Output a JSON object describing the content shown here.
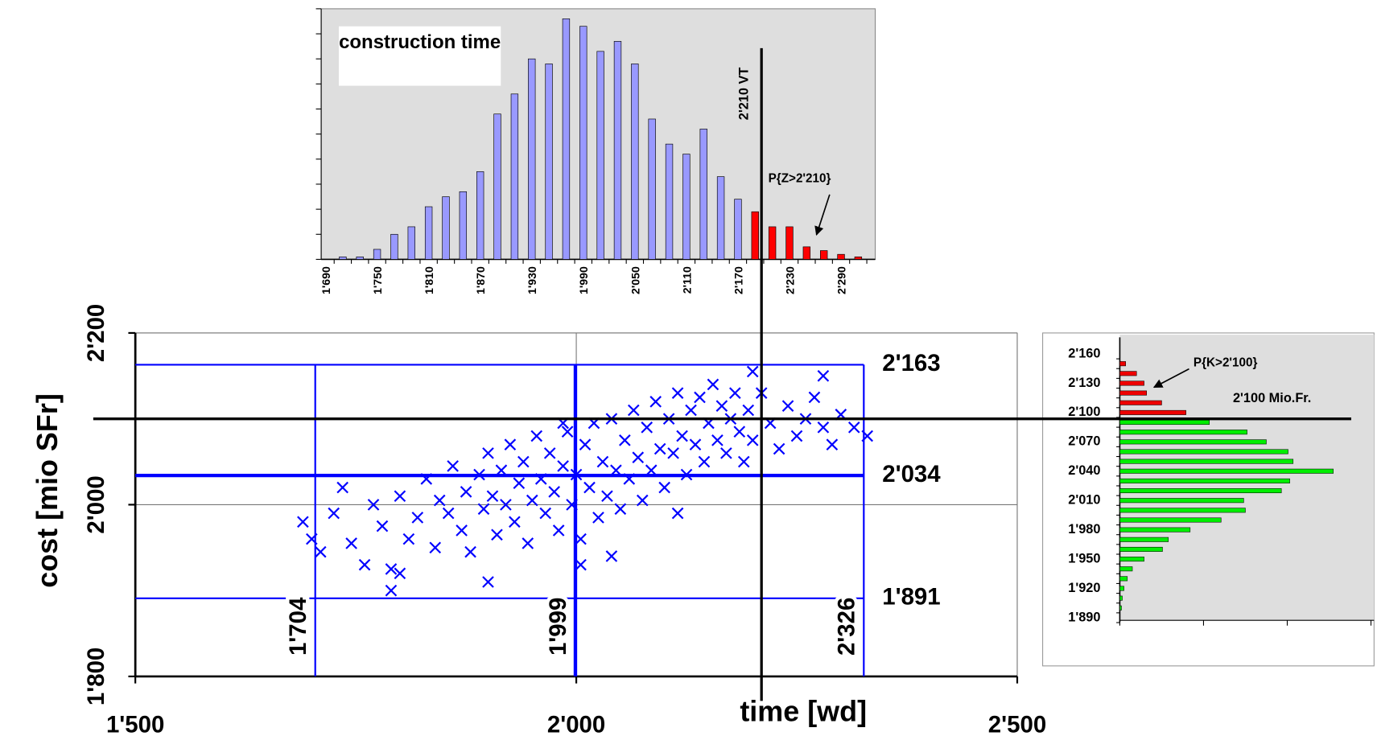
{
  "chart_data": [
    {
      "type": "bar",
      "title": "construction time",
      "categories": [
        "1'690",
        null,
        null,
        "1'750",
        null,
        null,
        "1'810",
        null,
        null,
        "1'870",
        null,
        null,
        "1'930",
        null,
        null,
        "1'990",
        null,
        null,
        "2'050",
        null,
        null,
        "2'110",
        null,
        null,
        "2'170",
        null,
        null,
        "2'230",
        null,
        null,
        "2'290",
        null
      ],
      "series": [
        {
          "color": "#9999ff",
          "values": [
            0,
            0.1,
            0.1,
            0.4,
            1.0,
            1.3,
            2.1,
            2.5,
            2.7,
            3.5,
            5.8,
            6.6,
            8.0,
            7.8,
            9.6,
            9.3,
            8.3,
            8.7,
            7.8,
            5.6,
            4.6,
            4.2,
            5.2,
            3.3,
            2.4,
            null,
            null,
            null,
            null,
            null,
            null,
            null
          ]
        },
        {
          "color": "#ff0000",
          "values": [
            null,
            null,
            null,
            null,
            null,
            null,
            null,
            null,
            null,
            null,
            null,
            null,
            null,
            null,
            null,
            null,
            null,
            null,
            null,
            null,
            null,
            null,
            null,
            null,
            null,
            1.9,
            1.3,
            1.3,
            0.5,
            0.35,
            0.2,
            0.1
          ]
        }
      ],
      "ylim": [
        0,
        10
      ],
      "yticks": [
        0,
        1,
        2,
        3,
        4,
        5,
        6,
        7,
        8,
        9,
        10
      ],
      "annotations": [
        "2'210 VT",
        "P{Z>2'210}"
      ]
    },
    {
      "type": "scatter",
      "color": "#0000ff",
      "x_label": "time [wd]",
      "y_label": "cost [mio SFr]",
      "x": [
        1690,
        1700,
        1710,
        1725,
        1735,
        1745,
        1760,
        1770,
        1780,
        1790,
        1800,
        1810,
        1820,
        1830,
        1840,
        1845,
        1855,
        1860,
        1870,
        1875,
        1880,
        1890,
        1895,
        1900,
        1905,
        1910,
        1915,
        1920,
        1925,
        1930,
        1935,
        1940,
        1945,
        1950,
        1955,
        1960,
        1965,
        1970,
        1975,
        1980,
        1985,
        1990,
        1995,
        2000,
        2005,
        2010,
        2015,
        2020,
        2025,
        2030,
        2035,
        2040,
        2045,
        2050,
        2055,
        2060,
        2065,
        2070,
        2075,
        2080,
        2085,
        2090,
        2095,
        2100,
        2105,
        2110,
        2115,
        2120,
        2125,
        2130,
        2135,
        2140,
        2145,
        2150,
        2155,
        2160,
        2165,
        2170,
        2175,
        2180,
        2185,
        2190,
        2195,
        2200,
        2210,
        2220,
        2230,
        2240,
        2250,
        2260,
        2270,
        2280,
        2290,
        2300,
        2315,
        2330,
        2005,
        2040,
        2115,
        1985,
        1900,
        1800,
        2200,
        2280,
        1790
      ],
      "y": [
        1980,
        1960,
        1945,
        1990,
        2020,
        1955,
        1930,
        2000,
        1975,
        1925,
        2010,
        1960,
        1985,
        2030,
        1950,
        2005,
        1990,
        2045,
        1970,
        2015,
        1945,
        2035,
        1995,
        2060,
        2010,
        1965,
        2040,
        2000,
        2070,
        1980,
        2025,
        2050,
        1955,
        2005,
        2080,
        2030,
        1990,
        2060,
        2015,
        1970,
        2045,
        2085,
        2000,
        2035,
        1960,
        2070,
        2020,
        2095,
        1985,
        2050,
        2010,
        2100,
        2040,
        1995,
        2075,
        2030,
        2110,
        2055,
        2005,
        2090,
        2040,
        2120,
        2065,
        2020,
        2100,
        2060,
        2130,
        2080,
        2035,
        2110,
        2070,
        2125,
        2050,
        2095,
        2140,
        2075,
        2115,
        2060,
        2100,
        2130,
        2085,
        2050,
        2110,
        2075,
        2130,
        2095,
        2065,
        2115,
        2080,
        2100,
        2125,
        2090,
        2070,
        2105,
        2090,
        2080,
        1930,
        1940,
        1990,
        2095,
        1910,
        1920,
        2155,
        2150,
        1900
      ],
      "xlim": [
        1500,
        2500
      ],
      "ylim": [
        1800,
        2200
      ],
      "xticks": [
        {
          "value": 1500,
          "label": "1'500"
        },
        {
          "value": 2000,
          "label": "2'000"
        },
        {
          "value": 2500,
          "label": "2'500"
        }
      ],
      "yticks": [
        {
          "value": 1800,
          "label": "1'800"
        },
        {
          "value": 2000,
          "label": "2'000"
        },
        {
          "value": 2200,
          "label": "2'200"
        }
      ],
      "grid": true,
      "ref_lines": {
        "x": [
          {
            "value": 1704,
            "label": "1'704"
          },
          {
            "value": 1999,
            "label": "1'999"
          },
          {
            "value": 2326,
            "label": "2'326"
          }
        ],
        "y": [
          {
            "value": 1891,
            "label": "1'891"
          },
          {
            "value": 2034,
            "label": "2'034"
          },
          {
            "value": 2163,
            "label": "2'163"
          }
        ]
      },
      "crosshair": {
        "x": 2210,
        "y": 2100
      }
    },
    {
      "type": "barh",
      "categories": [
        "1'890",
        null,
        null,
        "1'920",
        null,
        null,
        "1'950",
        null,
        null,
        "1'980",
        null,
        null,
        "2'010",
        null,
        null,
        "2'040",
        null,
        null,
        "2'070",
        null,
        null,
        "2'100",
        null,
        null,
        "2'130",
        null,
        null,
        "2'160"
      ],
      "series": [
        {
          "color": "#00ee00",
          "values": [
            0,
            0.02,
            0.03,
            0.05,
            0.09,
            0.15,
            0.29,
            0.51,
            0.58,
            0.84,
            1.21,
            1.5,
            1.48,
            1.93,
            2.03,
            2.55,
            2.07,
            2.01,
            1.75,
            1.52,
            1.07,
            null,
            null,
            null,
            null,
            null,
            null,
            null
          ]
        },
        {
          "color": "#ee0000",
          "values": [
            null,
            null,
            null,
            null,
            null,
            null,
            null,
            null,
            null,
            null,
            null,
            null,
            null,
            null,
            null,
            null,
            null,
            null,
            null,
            null,
            null,
            0.79,
            0.5,
            0.32,
            0.29,
            0.2,
            0.07,
            0
          ]
        }
      ],
      "xlim": [
        0,
        3
      ],
      "xticks": [
        0,
        1,
        2,
        3
      ],
      "annotations": [
        "P{K>2'100}",
        "2'100 Mio.Fr."
      ]
    }
  ]
}
